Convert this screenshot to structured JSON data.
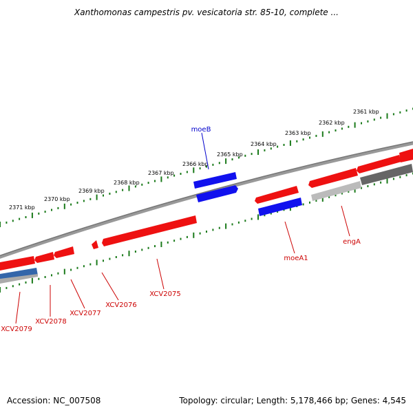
{
  "title": "Xanthomonas campestris pv. vesicatoria str. 85-10, complete ...",
  "footer": {
    "accession": "Accession: NC_007508",
    "stats": "Topology: circular; Length: 5,178,466 bp; Genes: 4,545"
  },
  "colors": {
    "forward_strand_gene": "#ee1111",
    "rna_gene": "#1111ee",
    "backbone": "#888888",
    "tick": "#1a7a1a",
    "label_forward": "#cc0000",
    "label_rna": "#0000cc"
  },
  "ruler": {
    "ticks": [
      "2361 kbp",
      "2362 kbp",
      "2363 kbp",
      "2364 kbp",
      "2365 kbp",
      "2366 kbp",
      "2367 kbp",
      "2368 kbp",
      "2369 kbp",
      "2370 kbp",
      "2371 kbp"
    ]
  },
  "genes": [
    {
      "name": "moeB",
      "type": "rna"
    },
    {
      "name": "moeA1",
      "type": "rna"
    },
    {
      "name": "engA",
      "type": "forward"
    },
    {
      "name": "XCV2075",
      "type": "forward"
    },
    {
      "name": "XCV2076",
      "type": "forward"
    },
    {
      "name": "XCV2077",
      "type": "forward"
    },
    {
      "name": "XCV2078",
      "type": "forward"
    },
    {
      "name": "XCV2079",
      "type": "forward"
    }
  ]
}
